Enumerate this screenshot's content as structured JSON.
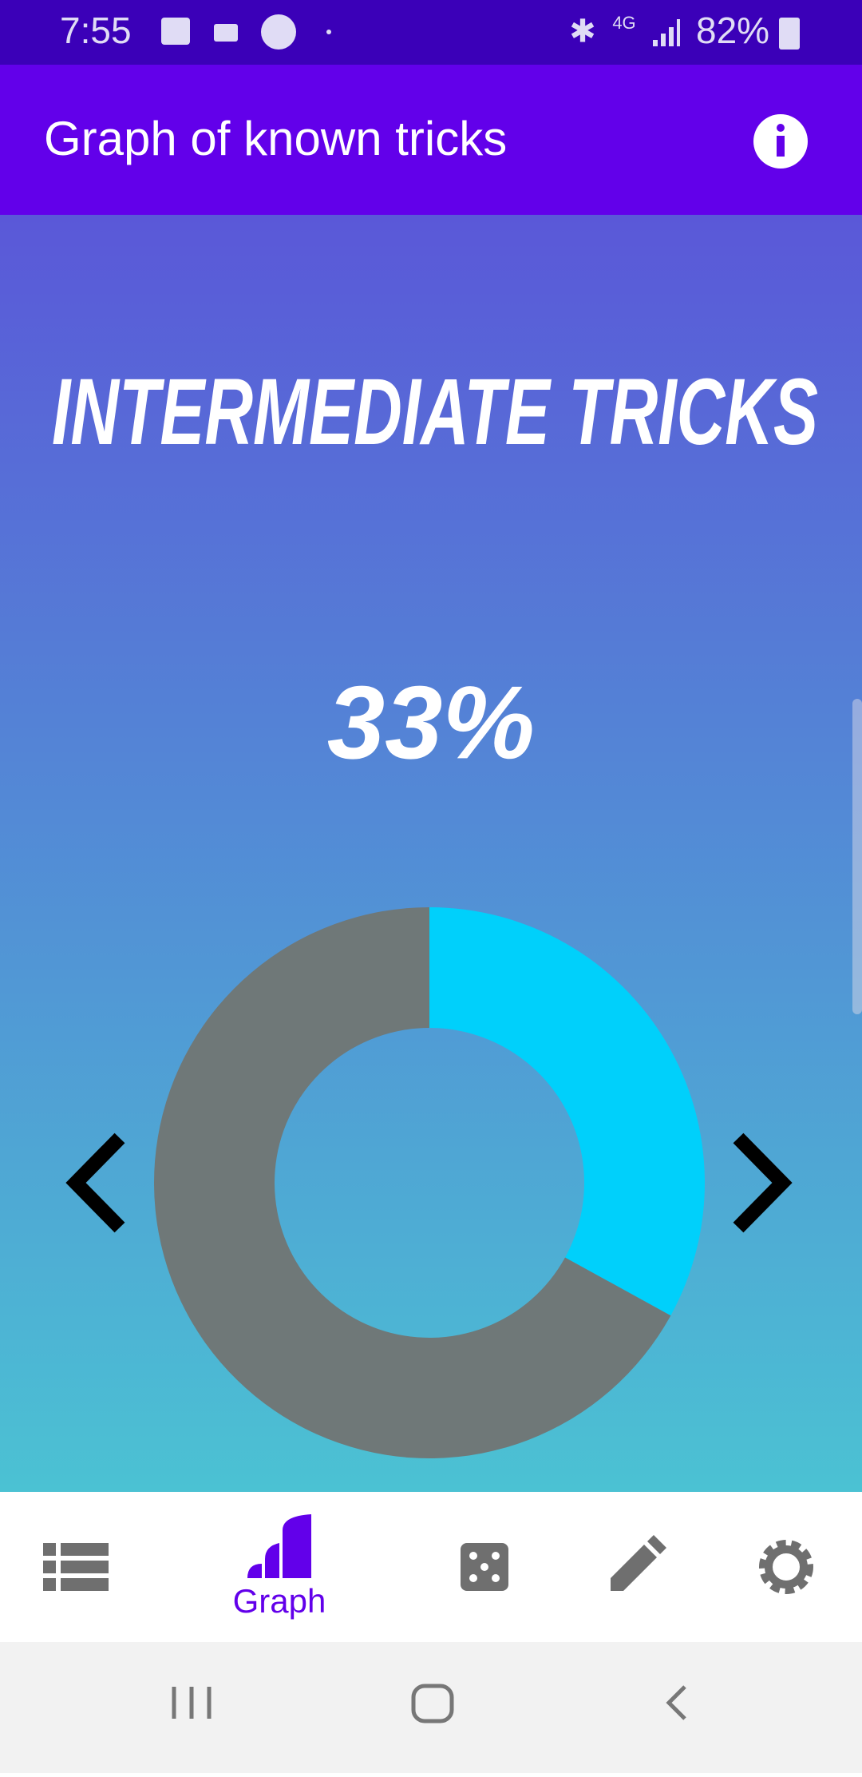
{
  "status_bar": {
    "time": "7:55",
    "network": "4G",
    "battery": "82%"
  },
  "app_bar": {
    "title": "Graph of known tricks"
  },
  "chart_data": {
    "type": "donut",
    "title": "INTERMEDIATE TRICKS",
    "values": [
      33,
      67
    ],
    "value_labels": [
      "33%",
      null
    ],
    "colors": [
      "#00d0fb",
      "#6f7878"
    ]
  },
  "bottom_nav": {
    "active_label": "Graph"
  }
}
